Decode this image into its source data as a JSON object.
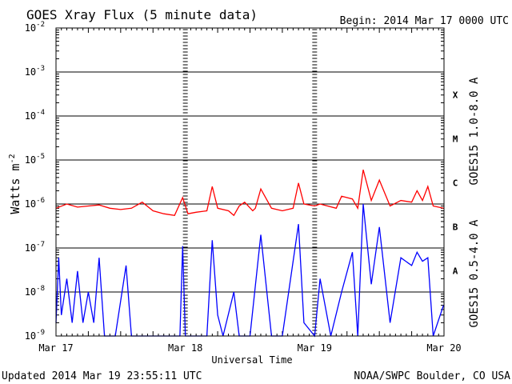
{
  "chart_data": {
    "type": "line",
    "title": "GOES Xray Flux (5 minute data)",
    "begin_text": "Begin:  2014 Mar 17 0000 UTC",
    "xlabel": "Universal Time",
    "ylabel": "Watts m",
    "ylabel_exponent": "-2",
    "y_scale": "log",
    "ylim": [
      1e-09,
      0.01
    ],
    "y_ticks": [
      {
        "mantissa": "10",
        "exponent": "-2",
        "value": 0.01
      },
      {
        "mantissa": "10",
        "exponent": "-3",
        "value": 0.001
      },
      {
        "mantissa": "10",
        "exponent": "-4",
        "value": 0.0001
      },
      {
        "mantissa": "10",
        "exponent": "-5",
        "value": 1e-05
      },
      {
        "mantissa": "10",
        "exponent": "-6",
        "value": 1e-06
      },
      {
        "mantissa": "10",
        "exponent": "-7",
        "value": 1e-07
      },
      {
        "mantissa": "10",
        "exponent": "-8",
        "value": 1e-08
      },
      {
        "mantissa": "10",
        "exponent": "-9",
        "value": 1e-09
      }
    ],
    "xlim": [
      "2014-03-17T00:00",
      "2014-03-20T00:00"
    ],
    "x_ticks": [
      {
        "label": "Mar 17",
        "time": "2014-03-17T00:00"
      },
      {
        "label": "Mar 18",
        "time": "2014-03-18T00:00"
      },
      {
        "label": "Mar 19",
        "time": "2014-03-19T00:00"
      },
      {
        "label": "Mar 20",
        "time": "2014-03-20T00:00"
      }
    ],
    "flare_classes": [
      {
        "label": "X",
        "value": 0.0001
      },
      {
        "label": "M",
        "value": 1e-05
      },
      {
        "label": "C",
        "value": 1e-06
      },
      {
        "label": "B",
        "value": 1e-07
      },
      {
        "label": "A",
        "value": 1e-08
      }
    ],
    "grid": true,
    "series": [
      {
        "name": "GOES15 1.0-8.0 A",
        "color": "#ff0000",
        "points": [
          [
            "2014-03-17T00:00",
            8e-07
          ],
          [
            "2014-03-17T02:00",
            1e-06
          ],
          [
            "2014-03-17T04:00",
            8.5e-07
          ],
          [
            "2014-03-17T06:00",
            9e-07
          ],
          [
            "2014-03-17T08:00",
            9.5e-07
          ],
          [
            "2014-03-17T10:00",
            8e-07
          ],
          [
            "2014-03-17T12:00",
            7.5e-07
          ],
          [
            "2014-03-17T14:00",
            8e-07
          ],
          [
            "2014-03-17T16:00",
            1.1e-06
          ],
          [
            "2014-03-17T18:00",
            7e-07
          ],
          [
            "2014-03-17T20:00",
            6e-07
          ],
          [
            "2014-03-17T22:00",
            5.5e-07
          ],
          [
            "2014-03-17T23:30",
            1.4e-06
          ],
          [
            "2014-03-18T00:30",
            6e-07
          ],
          [
            "2014-03-18T02:00",
            6.5e-07
          ],
          [
            "2014-03-18T04:00",
            7e-07
          ],
          [
            "2014-03-18T05:00",
            2.5e-06
          ],
          [
            "2014-03-18T06:00",
            8e-07
          ],
          [
            "2014-03-18T08:00",
            7e-07
          ],
          [
            "2014-03-18T09:00",
            5.5e-07
          ],
          [
            "2014-03-18T10:00",
            9e-07
          ],
          [
            "2014-03-18T11:00",
            1.1e-06
          ],
          [
            "2014-03-18T12:30",
            7e-07
          ],
          [
            "2014-03-18T13:00",
            8e-07
          ],
          [
            "2014-03-18T14:00",
            2.2e-06
          ],
          [
            "2014-03-18T16:00",
            8e-07
          ],
          [
            "2014-03-18T18:00",
            7e-07
          ],
          [
            "2014-03-18T20:00",
            8e-07
          ],
          [
            "2014-03-18T21:00",
            3e-06
          ],
          [
            "2014-03-18T22:00",
            1e-06
          ],
          [
            "2014-03-19T00:00",
            9e-07
          ],
          [
            "2014-03-19T01:00",
            1e-06
          ],
          [
            "2014-03-19T04:00",
            8e-07
          ],
          [
            "2014-03-19T05:00",
            1.5e-06
          ],
          [
            "2014-03-19T07:00",
            1.3e-06
          ],
          [
            "2014-03-19T08:00",
            8e-07
          ],
          [
            "2014-03-19T09:00",
            6e-06
          ],
          [
            "2014-03-19T10:30",
            1.2e-06
          ],
          [
            "2014-03-19T12:00",
            3.5e-06
          ],
          [
            "2014-03-19T14:00",
            9e-07
          ],
          [
            "2014-03-19T16:00",
            1.2e-06
          ],
          [
            "2014-03-19T18:00",
            1.1e-06
          ],
          [
            "2014-03-19T19:00",
            2e-06
          ],
          [
            "2014-03-19T20:00",
            1.2e-06
          ],
          [
            "2014-03-19T21:00",
            2.5e-06
          ],
          [
            "2014-03-19T22:00",
            9e-07
          ],
          [
            "2014-03-19T23:55",
            8e-07
          ]
        ]
      },
      {
        "name": "GOES15 0.5-4.0 A",
        "color": "#0000ff",
        "points": [
          [
            "2014-03-17T00:00",
            2e-09
          ],
          [
            "2014-03-17T00:30",
            6e-08
          ],
          [
            "2014-03-17T01:00",
            3e-09
          ],
          [
            "2014-03-17T02:00",
            2e-08
          ],
          [
            "2014-03-17T03:00",
            2e-09
          ],
          [
            "2014-03-17T04:00",
            3e-08
          ],
          [
            "2014-03-17T05:00",
            2e-09
          ],
          [
            "2014-03-17T06:00",
            1e-08
          ],
          [
            "2014-03-17T07:00",
            2e-09
          ],
          [
            "2014-03-17T08:00",
            6e-08
          ],
          [
            "2014-03-17T09:00",
            1e-09
          ],
          [
            "2014-03-17T11:00",
            1e-09
          ],
          [
            "2014-03-17T13:00",
            4e-08
          ],
          [
            "2014-03-17T14:00",
            1e-09
          ],
          [
            "2014-03-17T17:00",
            1e-09
          ],
          [
            "2014-03-17T20:00",
            1e-09
          ],
          [
            "2014-03-17T23:00",
            1e-09
          ],
          [
            "2014-03-17T23:30",
            1.1e-07
          ],
          [
            "2014-03-18T00:00",
            1e-09
          ],
          [
            "2014-03-18T02:00",
            1e-09
          ],
          [
            "2014-03-18T04:00",
            1e-09
          ],
          [
            "2014-03-18T05:00",
            1.5e-07
          ],
          [
            "2014-03-18T06:00",
            3e-09
          ],
          [
            "2014-03-18T07:00",
            1e-09
          ],
          [
            "2014-03-18T09:00",
            1e-08
          ],
          [
            "2014-03-18T10:00",
            1e-09
          ],
          [
            "2014-03-18T12:00",
            1e-09
          ],
          [
            "2014-03-18T14:00",
            2e-07
          ],
          [
            "2014-03-18T16:00",
            1e-09
          ],
          [
            "2014-03-18T18:00",
            1e-09
          ],
          [
            "2014-03-18T21:00",
            3.5e-07
          ],
          [
            "2014-03-18T22:00",
            2e-09
          ],
          [
            "2014-03-19T00:00",
            1e-09
          ],
          [
            "2014-03-19T01:00",
            2e-08
          ],
          [
            "2014-03-19T03:00",
            1e-09
          ],
          [
            "2014-03-19T05:00",
            1e-08
          ],
          [
            "2014-03-19T07:00",
            8e-08
          ],
          [
            "2014-03-19T08:00",
            1e-09
          ],
          [
            "2014-03-19T09:00",
            1e-06
          ],
          [
            "2014-03-19T10:30",
            1.5e-08
          ],
          [
            "2014-03-19T12:00",
            3e-07
          ],
          [
            "2014-03-19T14:00",
            2e-09
          ],
          [
            "2014-03-19T16:00",
            6e-08
          ],
          [
            "2014-03-19T18:00",
            4e-08
          ],
          [
            "2014-03-19T19:00",
            8e-08
          ],
          [
            "2014-03-19T20:00",
            5e-08
          ],
          [
            "2014-03-19T21:00",
            6e-08
          ],
          [
            "2014-03-19T22:00",
            1e-09
          ],
          [
            "2014-03-19T23:55",
            5e-09
          ]
        ]
      }
    ]
  },
  "footer": {
    "updated": "Updated 2014 Mar 19 23:55:11 UTC",
    "source": "NOAA/SWPC Boulder, CO USA"
  }
}
